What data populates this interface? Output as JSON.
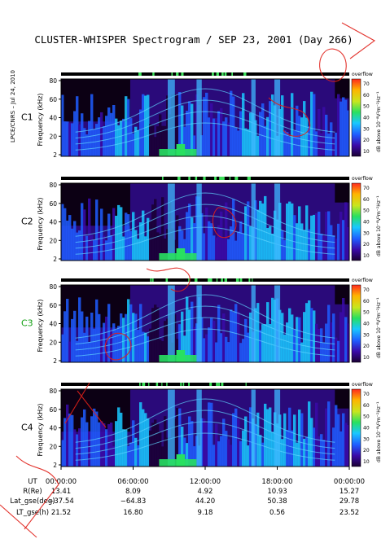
{
  "title": "CLUSTER-WHISPER Spectrogram / SEP 23, 2001 (Day 266)",
  "side_label": "LPCE/CNRS – Jul 24, 2010",
  "chart_data": {
    "type": "heatmap",
    "x_ticks": [
      "00:00:00",
      "06:00:00",
      "12:00:00",
      "18:00:00",
      "00:00:00"
    ],
    "ylabel": "Frequency (kHz)",
    "ylim": [
      2,
      80
    ],
    "y_ticks": [
      "2",
      "20",
      "40",
      "60",
      "80"
    ],
    "colorbar": {
      "label": "dB above 10⁻⁸V²m⁻²Hz⁻¹",
      "ticks": [
        "10",
        "20",
        "30",
        "40",
        "50",
        "60",
        "70"
      ],
      "range": [
        10,
        70
      ],
      "top_label": "overflow",
      "colors": [
        "#1a0033",
        "#3a0aa8",
        "#1f5cff",
        "#19c8ff",
        "#28e060",
        "#c8e61e",
        "#ffb400",
        "#ff2a1e"
      ]
    },
    "panels": [
      {
        "name": "C1",
        "color": "#000000"
      },
      {
        "name": "C2",
        "color": "#000000"
      },
      {
        "name": "C3",
        "color": "#12a012"
      },
      {
        "name": "C4",
        "color": "#000000"
      }
    ],
    "ephemeris": {
      "row_labels": [
        "UT",
        "R(Re)",
        "Lat_gse(deg)",
        "LT_gse(h)"
      ],
      "columns": [
        [
          "00:00:00",
          "13.41",
          "−37.54",
          "21.52"
        ],
        [
          "06:00:00",
          "8.09",
          "−64.83",
          "16.80"
        ],
        [
          "12:00:00",
          "4.92",
          "44.20",
          "9.18"
        ],
        [
          "18:00:00",
          "10.93",
          "50.38",
          "0.56"
        ],
        [
          "00:00:00",
          "15.27",
          "29.78",
          "23.52"
        ]
      ]
    }
  },
  "watermark": {
    "color": "#e0201a"
  }
}
